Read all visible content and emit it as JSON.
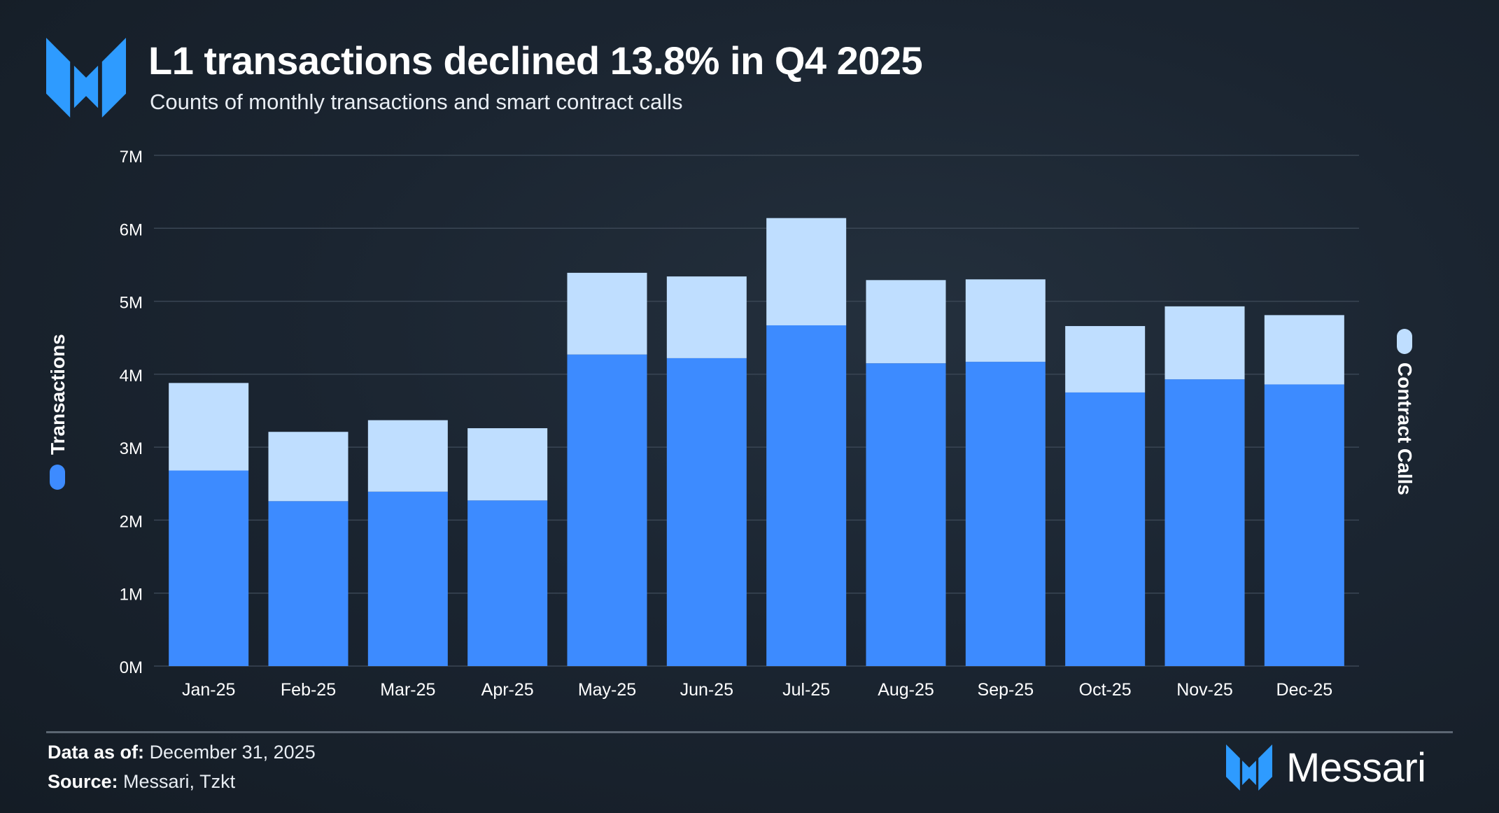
{
  "header": {
    "title": "L1 transactions declined 13.8% in Q4 2025",
    "subtitle": "Counts of monthly transactions and smart contract calls"
  },
  "footer": {
    "data_as_of_label": "Data as of:",
    "data_as_of_value": "December 31, 2025",
    "source_label": "Source:",
    "source_value": "Messari, Tzkt",
    "brand": "Messari"
  },
  "colors": {
    "transactions": "#3d8bff",
    "contract_calls": "#bfdeff",
    "grid": "#3a4654",
    "text": "#ffffff"
  },
  "chart_data": {
    "type": "bar",
    "stacked": true,
    "title": "L1 transactions declined 13.8% in Q4 2025",
    "subtitle": "Counts of monthly transactions and smart contract calls",
    "categories": [
      "Jan-25",
      "Feb-25",
      "Mar-25",
      "Apr-25",
      "May-25",
      "Jun-25",
      "Jul-25",
      "Aug-25",
      "Sep-25",
      "Oct-25",
      "Nov-25",
      "Dec-25"
    ],
    "series": [
      {
        "name": "Transactions",
        "values": [
          2.68,
          2.26,
          2.39,
          2.27,
          4.27,
          4.22,
          4.67,
          4.15,
          4.17,
          3.75,
          3.93,
          3.86
        ]
      },
      {
        "name": "Contract Calls",
        "values": [
          1.2,
          0.95,
          0.98,
          0.99,
          1.12,
          1.12,
          1.47,
          1.14,
          1.13,
          0.91,
          1.0,
          0.95
        ]
      }
    ],
    "ylim": [
      0,
      7
    ],
    "yticks": [
      "0M",
      "1M",
      "2M",
      "3M",
      "4M",
      "5M",
      "6M",
      "7M"
    ],
    "ylabel_left": "Transactions",
    "ylabel_right": "Contract Calls",
    "grid": true
  }
}
